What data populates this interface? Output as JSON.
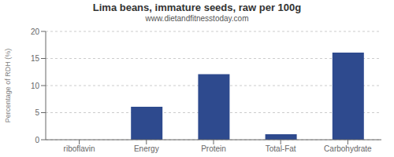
{
  "chart_data": {
    "type": "bar",
    "title": "Lima beans, immature seeds, raw per 100g",
    "subtitle": "www.dietandfitnesstoday.com",
    "categories": [
      "riboflavin",
      "Energy",
      "Protein",
      "Total-Fat",
      "Carbohydrate"
    ],
    "values": [
      0,
      6.1,
      12.1,
      1.0,
      16.1
    ],
    "color": "#2e4a8e",
    "ylabel": "Percentage of RDH (%)",
    "ylim": [
      0,
      20
    ],
    "yticks": [
      0,
      5,
      10,
      15,
      20
    ],
    "grid": true
  }
}
